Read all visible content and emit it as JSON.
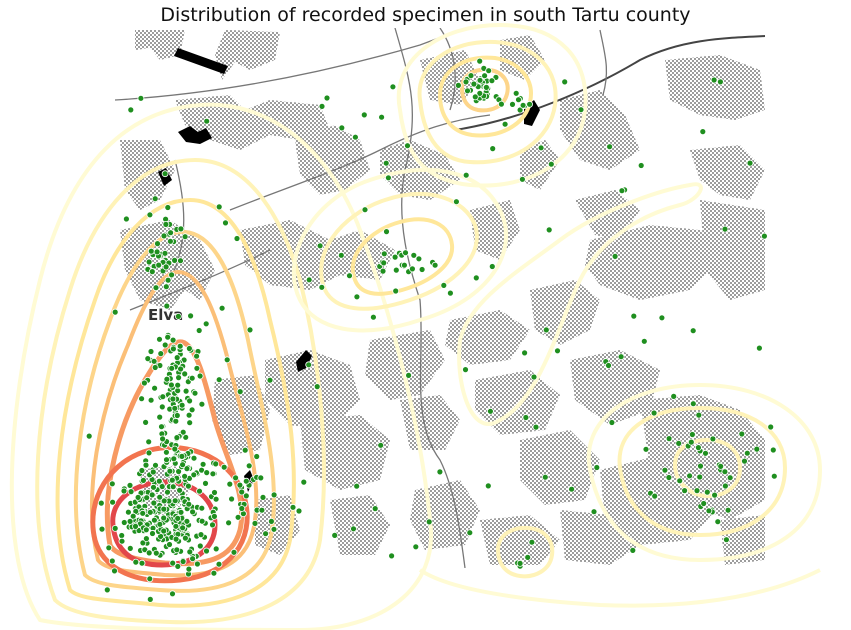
{
  "title": "Distribution of recorded specimen in south Tartu county",
  "place_labels": [
    {
      "name": "elva",
      "text": "Elva"
    }
  ],
  "colors": {
    "specimen_point": "#1f8f1f",
    "forest_hatch": "#555555",
    "road": "#777777",
    "water": "#000000",
    "density_levels": [
      "#fffbd4",
      "#fff3b8",
      "#ffe79a",
      "#fdd58a",
      "#fbbf78",
      "#f79a62",
      "#f2744f",
      "#e2474a"
    ]
  }
}
